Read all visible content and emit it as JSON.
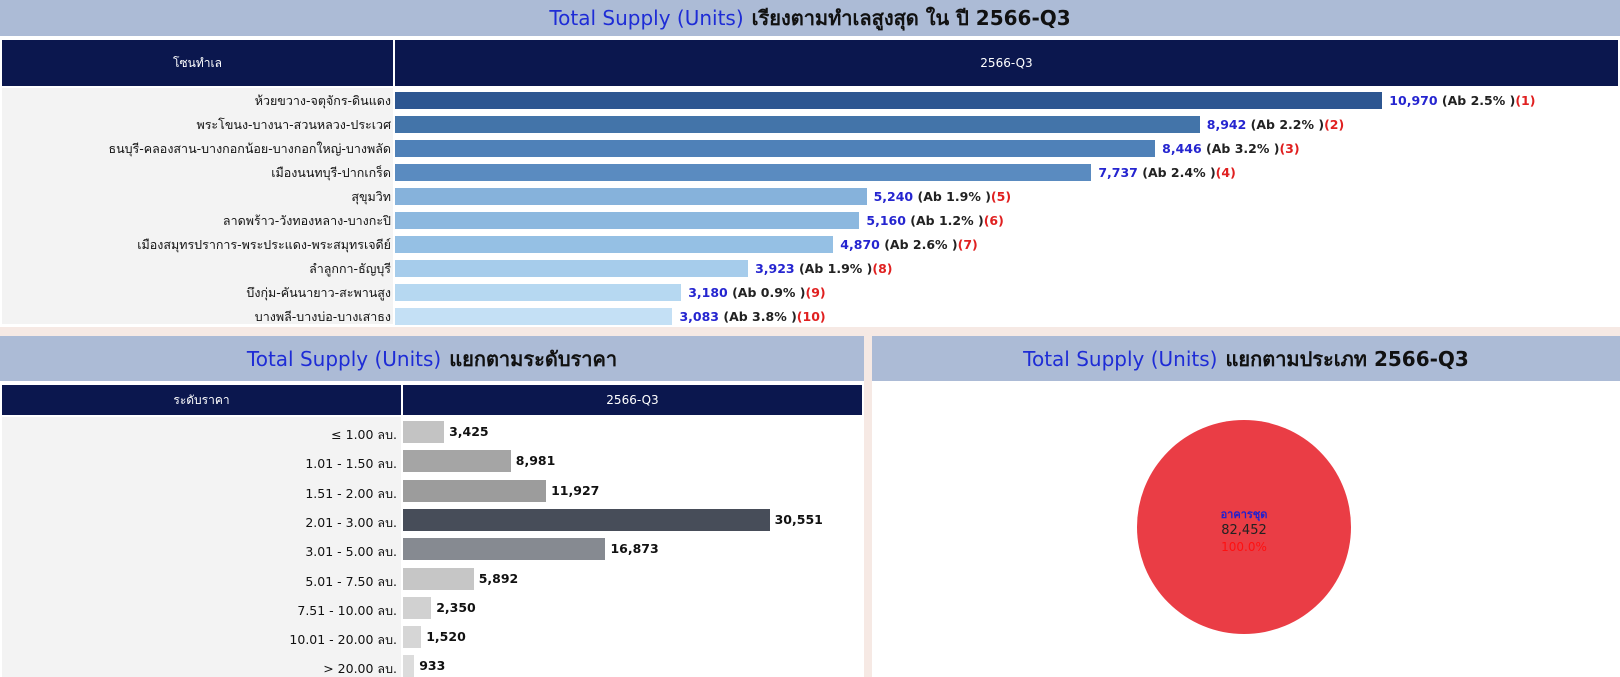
{
  "top": {
    "title_blue": "Total Supply (Units)",
    "title_rest": "เรียงตามทำเลสูงสุด ใน ปี 2566-Q3",
    "header_label": "โซนทำเล",
    "header_period": "2566-Q3"
  },
  "price": {
    "title_blue": "Total Supply (Units)",
    "title_rest": "แยกตามระดับราคา",
    "header_label": "ระดับราคา",
    "header_period": "2566-Q3"
  },
  "type": {
    "title_blue": "Total Supply (Units)",
    "title_rest": "แยกตามประเภท 2566-Q3"
  },
  "colors": {
    "zone_bars": [
      "#2d5691",
      "#4374a9",
      "#4f81b8",
      "#5a8bc0",
      "#86b2db",
      "#8cb8df",
      "#95c0e4",
      "#a6cceb",
      "#b6d8f1",
      "#c4e0f5"
    ],
    "price_bars": [
      "#c3c3c3",
      "#a5a5a5",
      "#9c9c9c",
      "#474d59",
      "#868a91",
      "#c6c6c6",
      "#d1d1d1",
      "#d6d6d6",
      "#dcdcdc"
    ],
    "pie": "#ea3d45"
  },
  "chart_data": [
    {
      "type": "bar",
      "orientation": "horizontal",
      "title": "Total Supply (Units) เรียงตามทำเลสูงสุด ใน ปี 2566-Q3",
      "categories": [
        "ห้วยขวาง-จตุจักร-ดินแดง",
        "พระโขนง-บางนา-สวนหลวง-ประเวศ",
        "ธนบุรี-คลองสาน-บางกอกน้อย-บางกอกใหญ่-บางพลัด",
        "เมืองนนทบุรี-ปากเกร็ด",
        "สุขุมวิท",
        "ลาดพร้าว-วังทองหลาง-บางกะปิ",
        "เมืองสมุทรปราการ-พระประแดง-พระสมุทรเจดีย์",
        "ลำลูกกา-ธัญบุรี",
        "บึงกุ่ม-คันนายาว-สะพานสูง",
        "บางพลี-บางบ่อ-บางเสาธง"
      ],
      "values": [
        10970,
        8942,
        8446,
        7737,
        5240,
        5160,
        4870,
        3923,
        3180,
        3083
      ],
      "value_labels": [
        "10,970",
        "8,942",
        "8,446",
        "7,737",
        "5,240",
        "5,160",
        "4,870",
        "3,923",
        "3,180",
        "3,083"
      ],
      "absorption_labels": [
        "(Ab 2.5% )",
        "(Ab 2.2% )",
        "(Ab 3.2% )",
        "(Ab 2.4% )",
        "(Ab 1.9% )",
        "(Ab 1.2% )",
        "(Ab 2.6% )",
        "(Ab 1.9% )",
        "(Ab 0.9% )",
        "(Ab 3.8% )"
      ],
      "rank_labels": [
        "(1)",
        "(2)",
        "(3)",
        "(4)",
        "(5)",
        "(6)",
        "(7)",
        "(8)",
        "(9)",
        "(10)"
      ],
      "xlim": [
        0,
        11500
      ]
    },
    {
      "type": "bar",
      "orientation": "horizontal",
      "title": "Total Supply (Units) แยกตามระดับราคา",
      "categories": [
        "≤ 1.00 ลบ.",
        "1.01 - 1.50 ลบ.",
        "1.51 - 2.00 ลบ.",
        "2.01 - 3.00 ลบ.",
        "3.01 - 5.00 ลบ.",
        "5.01 - 7.50 ลบ.",
        "7.51 - 10.00 ลบ.",
        "10.01 - 20.00 ลบ.",
        "> 20.00 ลบ."
      ],
      "values": [
        3425,
        8981,
        11927,
        30551,
        16873,
        5892,
        2350,
        1520,
        933
      ],
      "value_labels": [
        "3,425",
        "8,981",
        "11,927",
        "30,551",
        "16,873",
        "5,892",
        "2,350",
        "1,520",
        "933"
      ],
      "xlim": [
        0,
        34000
      ]
    },
    {
      "type": "pie",
      "title": "Total Supply (Units) แยกตามประเภท 2566-Q3",
      "categories": [
        "อาคารชุด"
      ],
      "values": [
        82452
      ],
      "value_labels": [
        "82,452"
      ],
      "percent_labels": [
        "100.0%"
      ]
    }
  ]
}
